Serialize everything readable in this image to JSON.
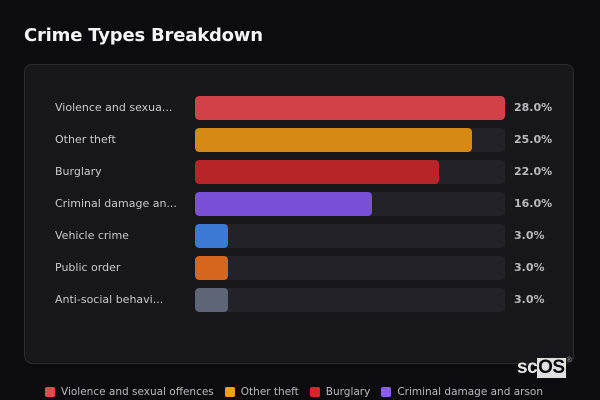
{
  "header": {
    "title": "Crime Types Breakdown"
  },
  "chart_data": {
    "type": "bar",
    "orientation": "horizontal",
    "title": "Crime Types Breakdown",
    "xlabel": "",
    "ylabel": "",
    "xlim": [
      0,
      28
    ],
    "grid": false,
    "legend_position": "bottom",
    "categories": [
      "Violence and sexual offences",
      "Other theft",
      "Burglary",
      "Criminal damage and arson",
      "Vehicle crime",
      "Public order",
      "Anti-social behaviour"
    ],
    "values": [
      28.0,
      25.0,
      22.0,
      16.0,
      3.0,
      3.0,
      3.0
    ],
    "unit": "%"
  },
  "rows": [
    {
      "label": "Violence and sexua...",
      "value": "28.0%",
      "pct": 28.0,
      "color": "#d0414a"
    },
    {
      "label": "Other theft",
      "value": "25.0%",
      "pct": 25.0,
      "color": "#d68a14"
    },
    {
      "label": "Burglary",
      "value": "22.0%",
      "pct": 22.0,
      "color": "#b82529"
    },
    {
      "label": "Criminal damage an...",
      "value": "16.0%",
      "pct": 16.0,
      "color": "#7a50d6"
    },
    {
      "label": "Vehicle crime",
      "value": "3.0%",
      "pct": 3.0,
      "color": "#3a7ad6"
    },
    {
      "label": "Public order",
      "value": "3.0%",
      "pct": 3.0,
      "color": "#d6661e"
    },
    {
      "label": "Anti-social behavi...",
      "value": "3.0%",
      "pct": 3.0,
      "color": "#5d6676"
    }
  ],
  "legend": [
    {
      "label": "Violence and sexual offences",
      "color": "#e5484d"
    },
    {
      "label": "Other theft",
      "color": "#f5a00f"
    },
    {
      "label": "Burglary",
      "color": "#d6262c"
    },
    {
      "label": "Criminal damage and arson",
      "color": "#8b5cf6"
    }
  ],
  "brand": {
    "sc": "sc",
    "os": "OS",
    "reg": "®"
  }
}
